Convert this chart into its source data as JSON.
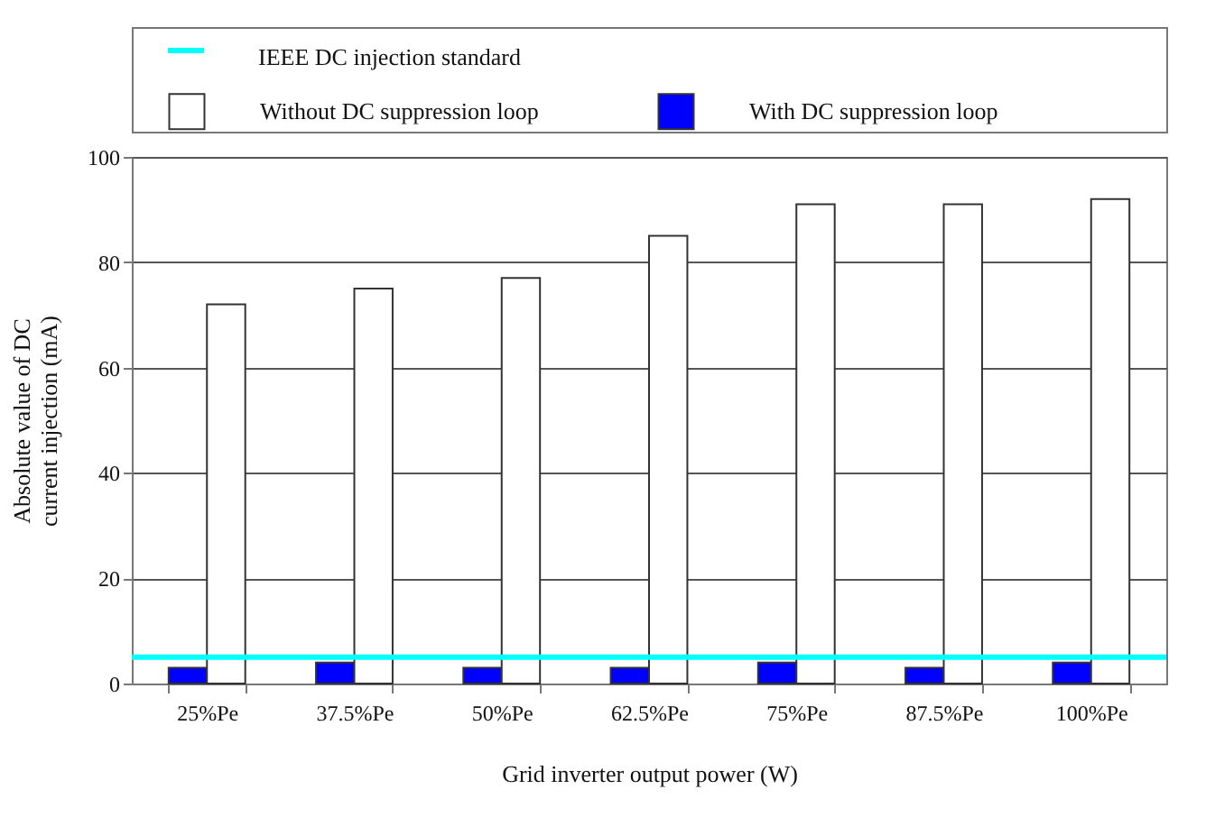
{
  "chart_data": {
    "type": "bar",
    "categories": [
      "25%Pe",
      "37.5%Pe",
      "50%Pe",
      "62.5%Pe",
      "75%Pe",
      "87.5%Pe",
      "100%Pe"
    ],
    "series": [
      {
        "name": "With  DC suppression loop",
        "color": "#0000ff",
        "values": [
          3,
          4,
          3,
          3,
          4,
          3,
          4
        ]
      },
      {
        "name": "Without  DC suppression loop",
        "color": "#ffffff",
        "values": [
          72,
          75,
          77,
          85,
          91,
          91,
          92
        ]
      }
    ],
    "ref_lines": [
      {
        "axis": "y",
        "value": 5,
        "label": "IEEE DC injection standard",
        "color": "#00ffff"
      }
    ],
    "xlabel": "Grid inverter output power (W)",
    "ylabel": "Absolute value of DC\ncurrent injection (mA)",
    "ylim": [
      0,
      100
    ],
    "yticks": [
      0,
      20,
      40,
      60,
      80,
      100
    ],
    "grid": "y",
    "legend": "top"
  }
}
